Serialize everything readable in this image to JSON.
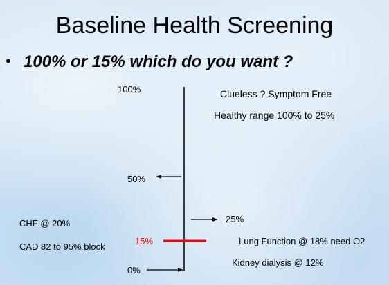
{
  "slide": {
    "title": "Baseline Health Screening",
    "bullet_symbol": "•",
    "bullet": "100% or 15% which do you want ?"
  },
  "scale": {
    "top_label": "100%",
    "mid_label": "50%",
    "label_25": "25%",
    "label_15": "15%",
    "bottom_label": "0%"
  },
  "notes": {
    "clueless": "Clueless ? Symptom Free",
    "healthy_range": "Healthy range 100% to 25%",
    "chf": "CHF @ 20%",
    "cad": "CAD 82 to 95% block",
    "lung": "Lung Function @ 18% need O2",
    "kidney": "Kidney dialysis @ 12%"
  },
  "colors": {
    "highlight": "#ff0000",
    "line": "#000000"
  }
}
